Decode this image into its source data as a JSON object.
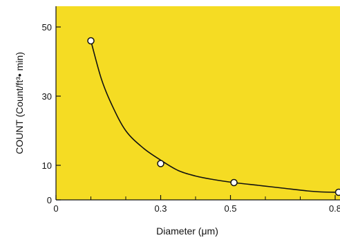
{
  "chart_data": {
    "type": "line",
    "title": "",
    "xlabel": "Diameter (μm)",
    "ylabel": "COUNT (Count/ft³• min)",
    "x_ticks": [
      0,
      0.3,
      0.5,
      0.8
    ],
    "x_tick_labels": [
      "0",
      "0.3",
      "0.5",
      "0.8"
    ],
    "x_minor_ticks": [
      0.1,
      0.2,
      0.4,
      0.6,
      0.7
    ],
    "y_ticks": [
      0,
      10,
      30,
      50
    ],
    "y_tick_labels": [
      "0",
      "10",
      "30",
      "50"
    ],
    "xlim": [
      0,
      0.82
    ],
    "ylim": [
      0,
      56
    ],
    "grid": false,
    "background_color": "#F5DC23",
    "series": [
      {
        "name": "",
        "x": [
          0.1,
          0.3,
          0.51,
          0.81
        ],
        "y": [
          46,
          10.5,
          5,
          2.2
        ],
        "curve_x": [
          0.1,
          0.13,
          0.16,
          0.2,
          0.25,
          0.3,
          0.35,
          0.4,
          0.45,
          0.51,
          0.58,
          0.65,
          0.72,
          0.76,
          0.81
        ],
        "curve_y": [
          46,
          35,
          27.5,
          20,
          15,
          11.5,
          8.5,
          6.9,
          5.9,
          5,
          4.2,
          3.4,
          2.6,
          2.3,
          2.2
        ]
      }
    ]
  }
}
